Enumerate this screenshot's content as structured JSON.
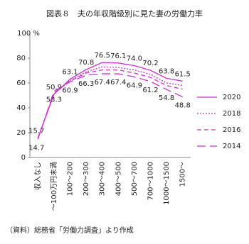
{
  "chart_data": {
    "type": "line",
    "title": "図表８　夫の年収階級別に見た妻の労働力率",
    "categories": [
      "収入なし",
      "～100万円未満",
      "100～200",
      "200～300",
      "300～400",
      "400～500",
      "500～700",
      "700～1000",
      "1000～1500",
      "1500～"
    ],
    "series": [
      {
        "name": "2020",
        "color": "#cc33cc",
        "values": [
          15.7,
          50.9,
          63.1,
          70.8,
          76.5,
          76.1,
          74.0,
          70.2,
          63.8,
          61.5
        ],
        "value_labels": [
          "15.7",
          "50.9",
          "63.1",
          "70.8",
          "76.5",
          "76.1",
          "74.0",
          "70.2",
          "63.8",
          "61.5"
        ]
      },
      {
        "name": "2018",
        "color": "#cc33cc",
        "values": [
          15.5,
          51.5,
          62,
          69,
          73,
          72.5,
          70.5,
          67,
          60,
          58
        ]
      },
      {
        "name": "2016",
        "color": "#cc33cc",
        "values": [
          15.2,
          52,
          61.5,
          68,
          70.5,
          70.5,
          68,
          64.5,
          58,
          55
        ]
      },
      {
        "name": "2014",
        "color": "#cc33cc",
        "values": [
          14.7,
          53.3,
          60.9,
          66.3,
          67.4,
          67.4,
          64.9,
          61.2,
          54.8,
          48.8
        ],
        "value_labels": [
          "14.7",
          "53.3",
          "60.9",
          "66.3",
          "67.4",
          "67.4",
          "64.9",
          "61.2",
          "54.8",
          "48.8"
        ]
      }
    ],
    "ylim": [
      0,
      100
    ],
    "yticks": [
      0,
      20,
      40,
      60,
      80,
      {
        "value": 100,
        "label": "100 %"
      }
    ],
    "source": "（資料）総務省「労働力調査」より作成"
  }
}
